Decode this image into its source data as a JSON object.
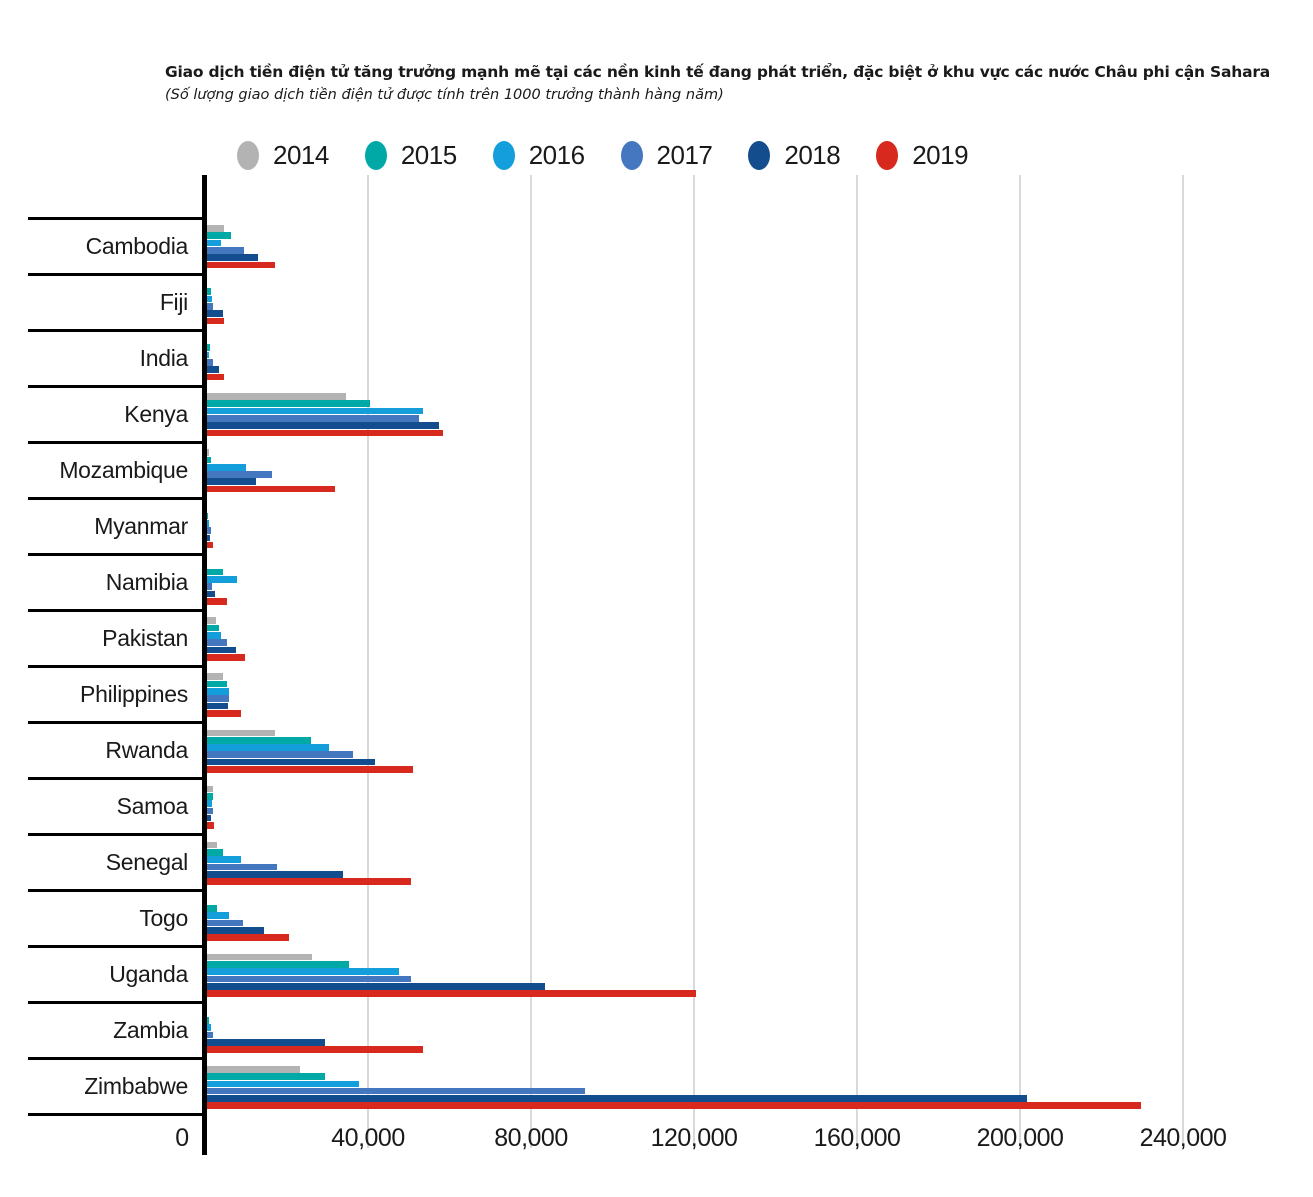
{
  "title": "Giao dịch tiền điện tử  tăng trưởng mạnh mẽ tại các nền kinh tế đang phát triển, đặc biệt ở khu vực các nước Châu phi cận Sahara",
  "subtitle": "(Số lượng giao dịch tiền điện tử được tính trên 1000 trưởng thành hàng năm)",
  "colors": {
    "y2014": "#b3b3b3",
    "y2015": "#00a9a6",
    "y2016": "#149fdc",
    "y2017": "#4577c1",
    "y2018": "#134d8d",
    "y2019": "#d7291d",
    "gridline": "#d9d9d9",
    "axis": "#000000"
  },
  "chart_data": {
    "type": "bar",
    "orientation": "horizontal",
    "title": "Giao dịch tiền điện tử  tăng trưởng mạnh mẽ tại các nền kinh tế đang phát triển, đặc biệt ở khu vực các nước Châu phi cận Sahara",
    "subtitle": "(Số lượng giao dịch tiền điện tử được tính trên 1000 trưởng thành hàng năm)",
    "legend_position": "top",
    "grid": true,
    "xlim": [
      0,
      265000
    ],
    "x_ticks": [
      0,
      40000,
      80000,
      120000,
      160000,
      200000,
      240000
    ],
    "x_tick_labels": [
      "0",
      "40,000",
      "80,000",
      "120,000",
      "160,000",
      "200,000",
      "240,000"
    ],
    "categories": [
      "Cambodia",
      "Fiji",
      "India",
      "Kenya",
      "Mozambique",
      "Myanmar",
      "Namibia",
      "Pakistan",
      "Philippines",
      "Rwanda",
      "Samoa",
      "Senegal",
      "Togo",
      "Uganda",
      "Zambia",
      "Zimbabwe"
    ],
    "series": [
      {
        "name": "2014",
        "color": "#b3b3b3",
        "values": [
          4200,
          0,
          0,
          34000,
          400,
          0,
          0,
          2200,
          3900,
          16700,
          1500,
          2400,
          0,
          25800,
          0,
          22900
        ]
      },
      {
        "name": "2015",
        "color": "#00a9a6",
        "values": [
          5900,
          1000,
          800,
          40000,
          900,
          200,
          4000,
          3000,
          4800,
          25500,
          1500,
          3900,
          2500,
          34800,
          600,
          28900
        ]
      },
      {
        "name": "2016",
        "color": "#149fdc",
        "values": [
          3400,
          1200,
          600,
          53000,
          9500,
          500,
          7300,
          3400,
          5300,
          29900,
          1200,
          8300,
          5300,
          47000,
          900,
          37300
        ]
      },
      {
        "name": "2017",
        "color": "#4577c1",
        "values": [
          9200,
          1500,
          1500,
          52000,
          16000,
          900,
          1300,
          4800,
          5400,
          35800,
          1500,
          17200,
          8800,
          50000,
          1400,
          92800
        ]
      },
      {
        "name": "2018",
        "color": "#134d8d",
        "values": [
          12600,
          3900,
          2900,
          57000,
          12000,
          700,
          1900,
          7100,
          5200,
          41200,
          900,
          33300,
          14100,
          83000,
          29000,
          201300
        ]
      },
      {
        "name": "2019",
        "color": "#d7291d",
        "values": [
          16700,
          4100,
          4100,
          58000,
          31400,
          1500,
          5000,
          9400,
          8300,
          50500,
          1600,
          50100,
          20100,
          120000,
          53000,
          229300
        ]
      }
    ]
  }
}
